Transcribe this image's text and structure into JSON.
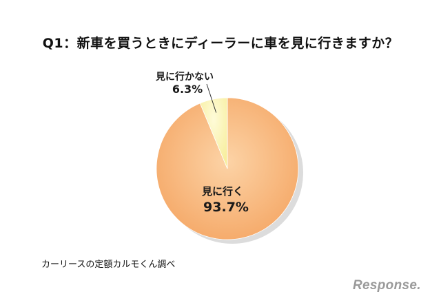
{
  "chart_data": {
    "type": "pie",
    "title": "Q1：新車を買うときにディーラーに車を見に行きますか？",
    "slices": [
      {
        "label": "見に行く",
        "value_text": "93.7%",
        "value": 93.7,
        "color": "#f7b57a"
      },
      {
        "label": "見に行かない",
        "value_text": "6.3%",
        "value": 6.3,
        "color": "#fbf2b0"
      }
    ]
  },
  "source": "カーリースの定額カルモくん調べ",
  "watermark": "Response."
}
